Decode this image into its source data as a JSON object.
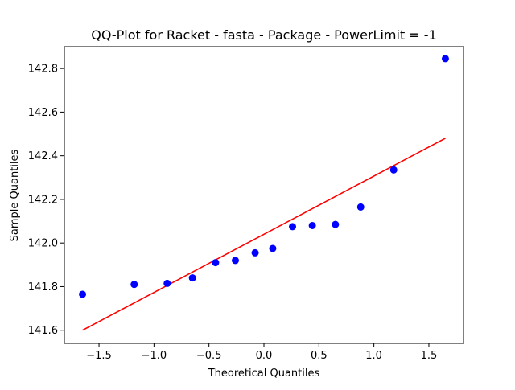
{
  "chart_data": {
    "type": "scatter",
    "title": "QQ-Plot for Racket - fasta - Package - PowerLimit = -1",
    "xlabel": "Theoretical Quantiles",
    "ylabel": "Sample Quantiles",
    "xlim": [
      -1.815,
      1.815
    ],
    "ylim": [
      141.54,
      142.9
    ],
    "xticks": [
      -1.5,
      -1.0,
      -0.5,
      0.0,
      0.5,
      1.0,
      1.5
    ],
    "xtick_labels": [
      "−1.5",
      "−1.0",
      "−0.5",
      "0.0",
      "0.5",
      "1.0",
      "1.5"
    ],
    "yticks": [
      141.6,
      141.8,
      142.0,
      142.2,
      142.4,
      142.6,
      142.8
    ],
    "ytick_labels": [
      "141.6",
      "141.8",
      "142.0",
      "142.2",
      "142.4",
      "142.6",
      "142.8"
    ],
    "grid": false,
    "series": [
      {
        "kind": "points",
        "color": "#0000ff",
        "x": [
          -1.65,
          -1.18,
          -0.88,
          -0.65,
          -0.44,
          -0.26,
          -0.08,
          0.08,
          0.26,
          0.44,
          0.65,
          0.88,
          1.18,
          1.65
        ],
        "y": [
          141.765,
          141.81,
          141.815,
          141.84,
          141.91,
          141.92,
          141.955,
          141.975,
          142.075,
          142.08,
          142.085,
          142.165,
          142.335,
          142.845
        ]
      },
      {
        "kind": "line",
        "color": "#ff0000",
        "x": [
          -1.65,
          1.65
        ],
        "y": [
          141.6,
          142.48
        ]
      }
    ]
  }
}
